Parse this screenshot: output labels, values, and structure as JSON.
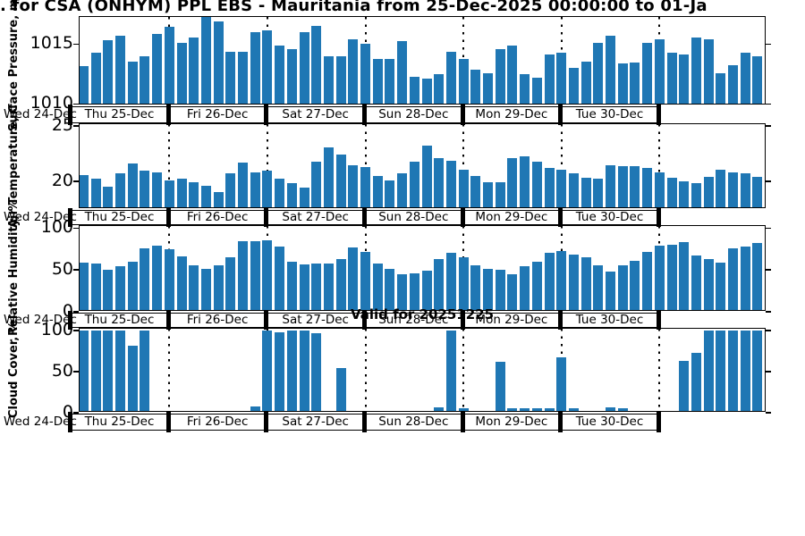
{
  "title": ". for CSA (ONHYM) PPL EBS  - Mauritania from 25-Dec-2025 00:00:00 to 01-Ja",
  "valid_label": "Valid for 20251225",
  "colors": {
    "bar": "#1f77b4",
    "axis": "#000000"
  },
  "x_axis": {
    "left_edge_label": "Wed 24-Dec",
    "day_labels": [
      "Thu 25-Dec",
      "Fri 26-Dec",
      "Sat 27-Dec",
      "Sun 28-Dec",
      "Mon 29-Dec",
      "Tue 30-Dec"
    ],
    "step_hours": 3,
    "n_points": 57,
    "n_day_dividers": 6
  },
  "chart_data": [
    {
      "type": "bar",
      "ylabel": "Surface Pressure, mb",
      "ylim": [
        1009.9,
        1017.3
      ],
      "yticks": [
        1010,
        1015
      ],
      "ytick_labels": [
        "1010",
        "1015"
      ],
      "values": [
        1013.0,
        1013.1,
        1014.2,
        1015.3,
        1015.7,
        1013.5,
        1013.9,
        1015.8,
        1016.4,
        1015.1,
        1015.5,
        1017.3,
        1016.9,
        1014.3,
        1014.3,
        1016.0,
        1016.1,
        1014.8,
        1014.5,
        1016.0,
        1016.5,
        1013.9,
        1013.9,
        1015.4,
        1015.0,
        1013.7,
        1013.7,
        1015.2,
        1012.2,
        1012.0,
        1012.4,
        1014.3,
        1013.7,
        1012.8,
        1012.5,
        1014.5,
        1014.8,
        1012.4,
        1012.1,
        1014.1,
        1014.2,
        1012.9,
        1013.5,
        1015.1,
        1015.7,
        1013.3,
        1013.4,
        1015.1,
        1015.4,
        1014.2,
        1014.1,
        1015.5,
        1015.4,
        1012.5,
        1013.2,
        1014.2,
        1013.9
      ]
    },
    {
      "type": "bar",
      "ylabel": "Air Temperature, C",
      "ylim": [
        17.5,
        25.2
      ],
      "yticks": [
        20,
        25
      ],
      "ytick_labels": [
        "20",
        "25"
      ],
      "values": [
        20.8,
        20.5,
        20.1,
        19.4,
        20.6,
        21.5,
        20.9,
        20.7,
        20.0,
        20.1,
        19.8,
        19.5,
        18.9,
        20.6,
        21.6,
        20.7,
        20.9,
        20.1,
        19.7,
        19.3,
        21.7,
        23.0,
        22.4,
        21.4,
        21.2,
        20.4,
        20.0,
        20.6,
        21.7,
        23.2,
        22.0,
        21.8,
        21.0,
        20.4,
        19.8,
        19.8,
        22.0,
        22.2,
        21.7,
        21.1,
        21.0,
        20.6,
        20.2,
        20.1,
        21.4,
        21.3,
        21.3,
        21.1,
        20.7,
        20.2,
        19.9,
        19.7,
        20.3,
        21.0,
        20.7,
        20.6,
        20.3
      ]
    },
    {
      "type": "bar",
      "ylabel": "Relative Humidity, %",
      "ylim": [
        0,
        103
      ],
      "yticks": [
        0,
        50,
        100
      ],
      "ytick_labels": [
        "0",
        "50",
        "100"
      ],
      "values": [
        58,
        58,
        57,
        49,
        53,
        59,
        75,
        78,
        74,
        65,
        55,
        50,
        55,
        64,
        84,
        84,
        85,
        77,
        59,
        56,
        57,
        57,
        62,
        76,
        71,
        57,
        50,
        44,
        45,
        48,
        62,
        70,
        64,
        54,
        50,
        49,
        44,
        53,
        59,
        70,
        72,
        68,
        64,
        54,
        47,
        55,
        60,
        71,
        78,
        80,
        83,
        67,
        62,
        58,
        75,
        77,
        82
      ]
    },
    {
      "type": "bar",
      "ylabel": "Cloud Cover, %",
      "ylim": [
        0,
        102.5
      ],
      "yticks": [
        0,
        50,
        100
      ],
      "ytick_labels": [
        "0",
        "50",
        "100"
      ],
      "values": [
        100,
        100,
        100,
        100,
        100,
        81,
        100,
        0,
        0,
        0,
        0,
        0,
        0,
        0,
        0,
        6,
        100,
        98,
        100,
        100,
        96,
        0,
        53,
        0,
        0,
        0,
        0,
        0,
        0,
        0,
        4,
        100,
        3,
        0,
        0,
        61,
        3,
        3,
        3,
        3,
        66,
        3,
        0,
        0,
        4,
        3,
        0,
        0,
        0,
        0,
        62,
        72,
        100,
        100,
        100,
        100,
        100
      ]
    }
  ]
}
